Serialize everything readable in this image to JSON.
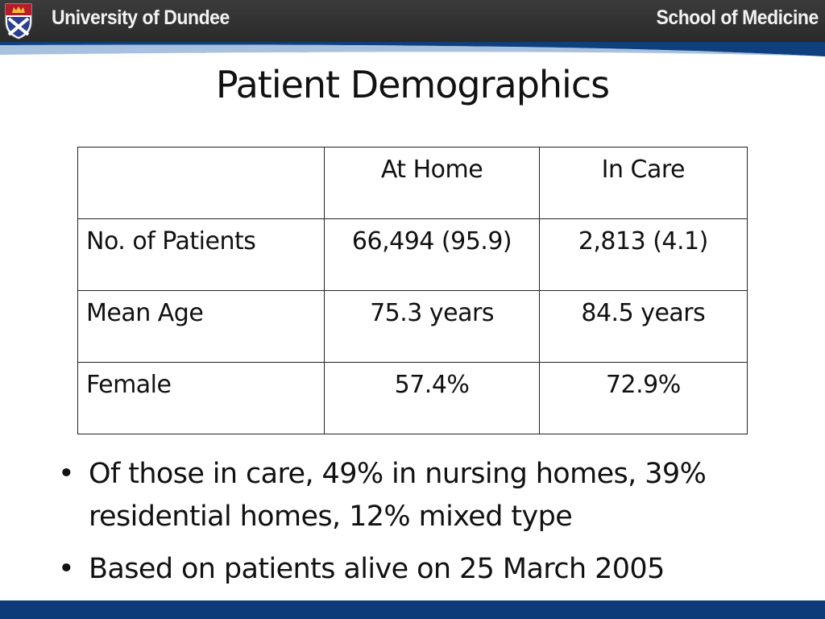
{
  "header": {
    "university": "University of Dundee",
    "school": "School of Medicine",
    "crest_icon": "university-crest-icon"
  },
  "title": "Patient Demographics",
  "table": {
    "headers": [
      "",
      "At Home",
      "In Care"
    ],
    "rows": [
      [
        "No. of Patients",
        "66,494 (95.9)",
        "2,813 (4.1)"
      ],
      [
        "Mean Age",
        "75.3 years",
        "84.5 years"
      ],
      [
        "Female",
        "57.4%",
        "72.9%"
      ]
    ]
  },
  "bullets": [
    "Of those in care, 49% in nursing homes, 39% residential homes, 12% mixed type",
    "Based on patients alive on 25 March 2005"
  ],
  "bullet_symbol": "•",
  "colors": {
    "header_bg": "#2f2f2f",
    "accent_blue": "#0d3a78",
    "text": "#111111"
  }
}
